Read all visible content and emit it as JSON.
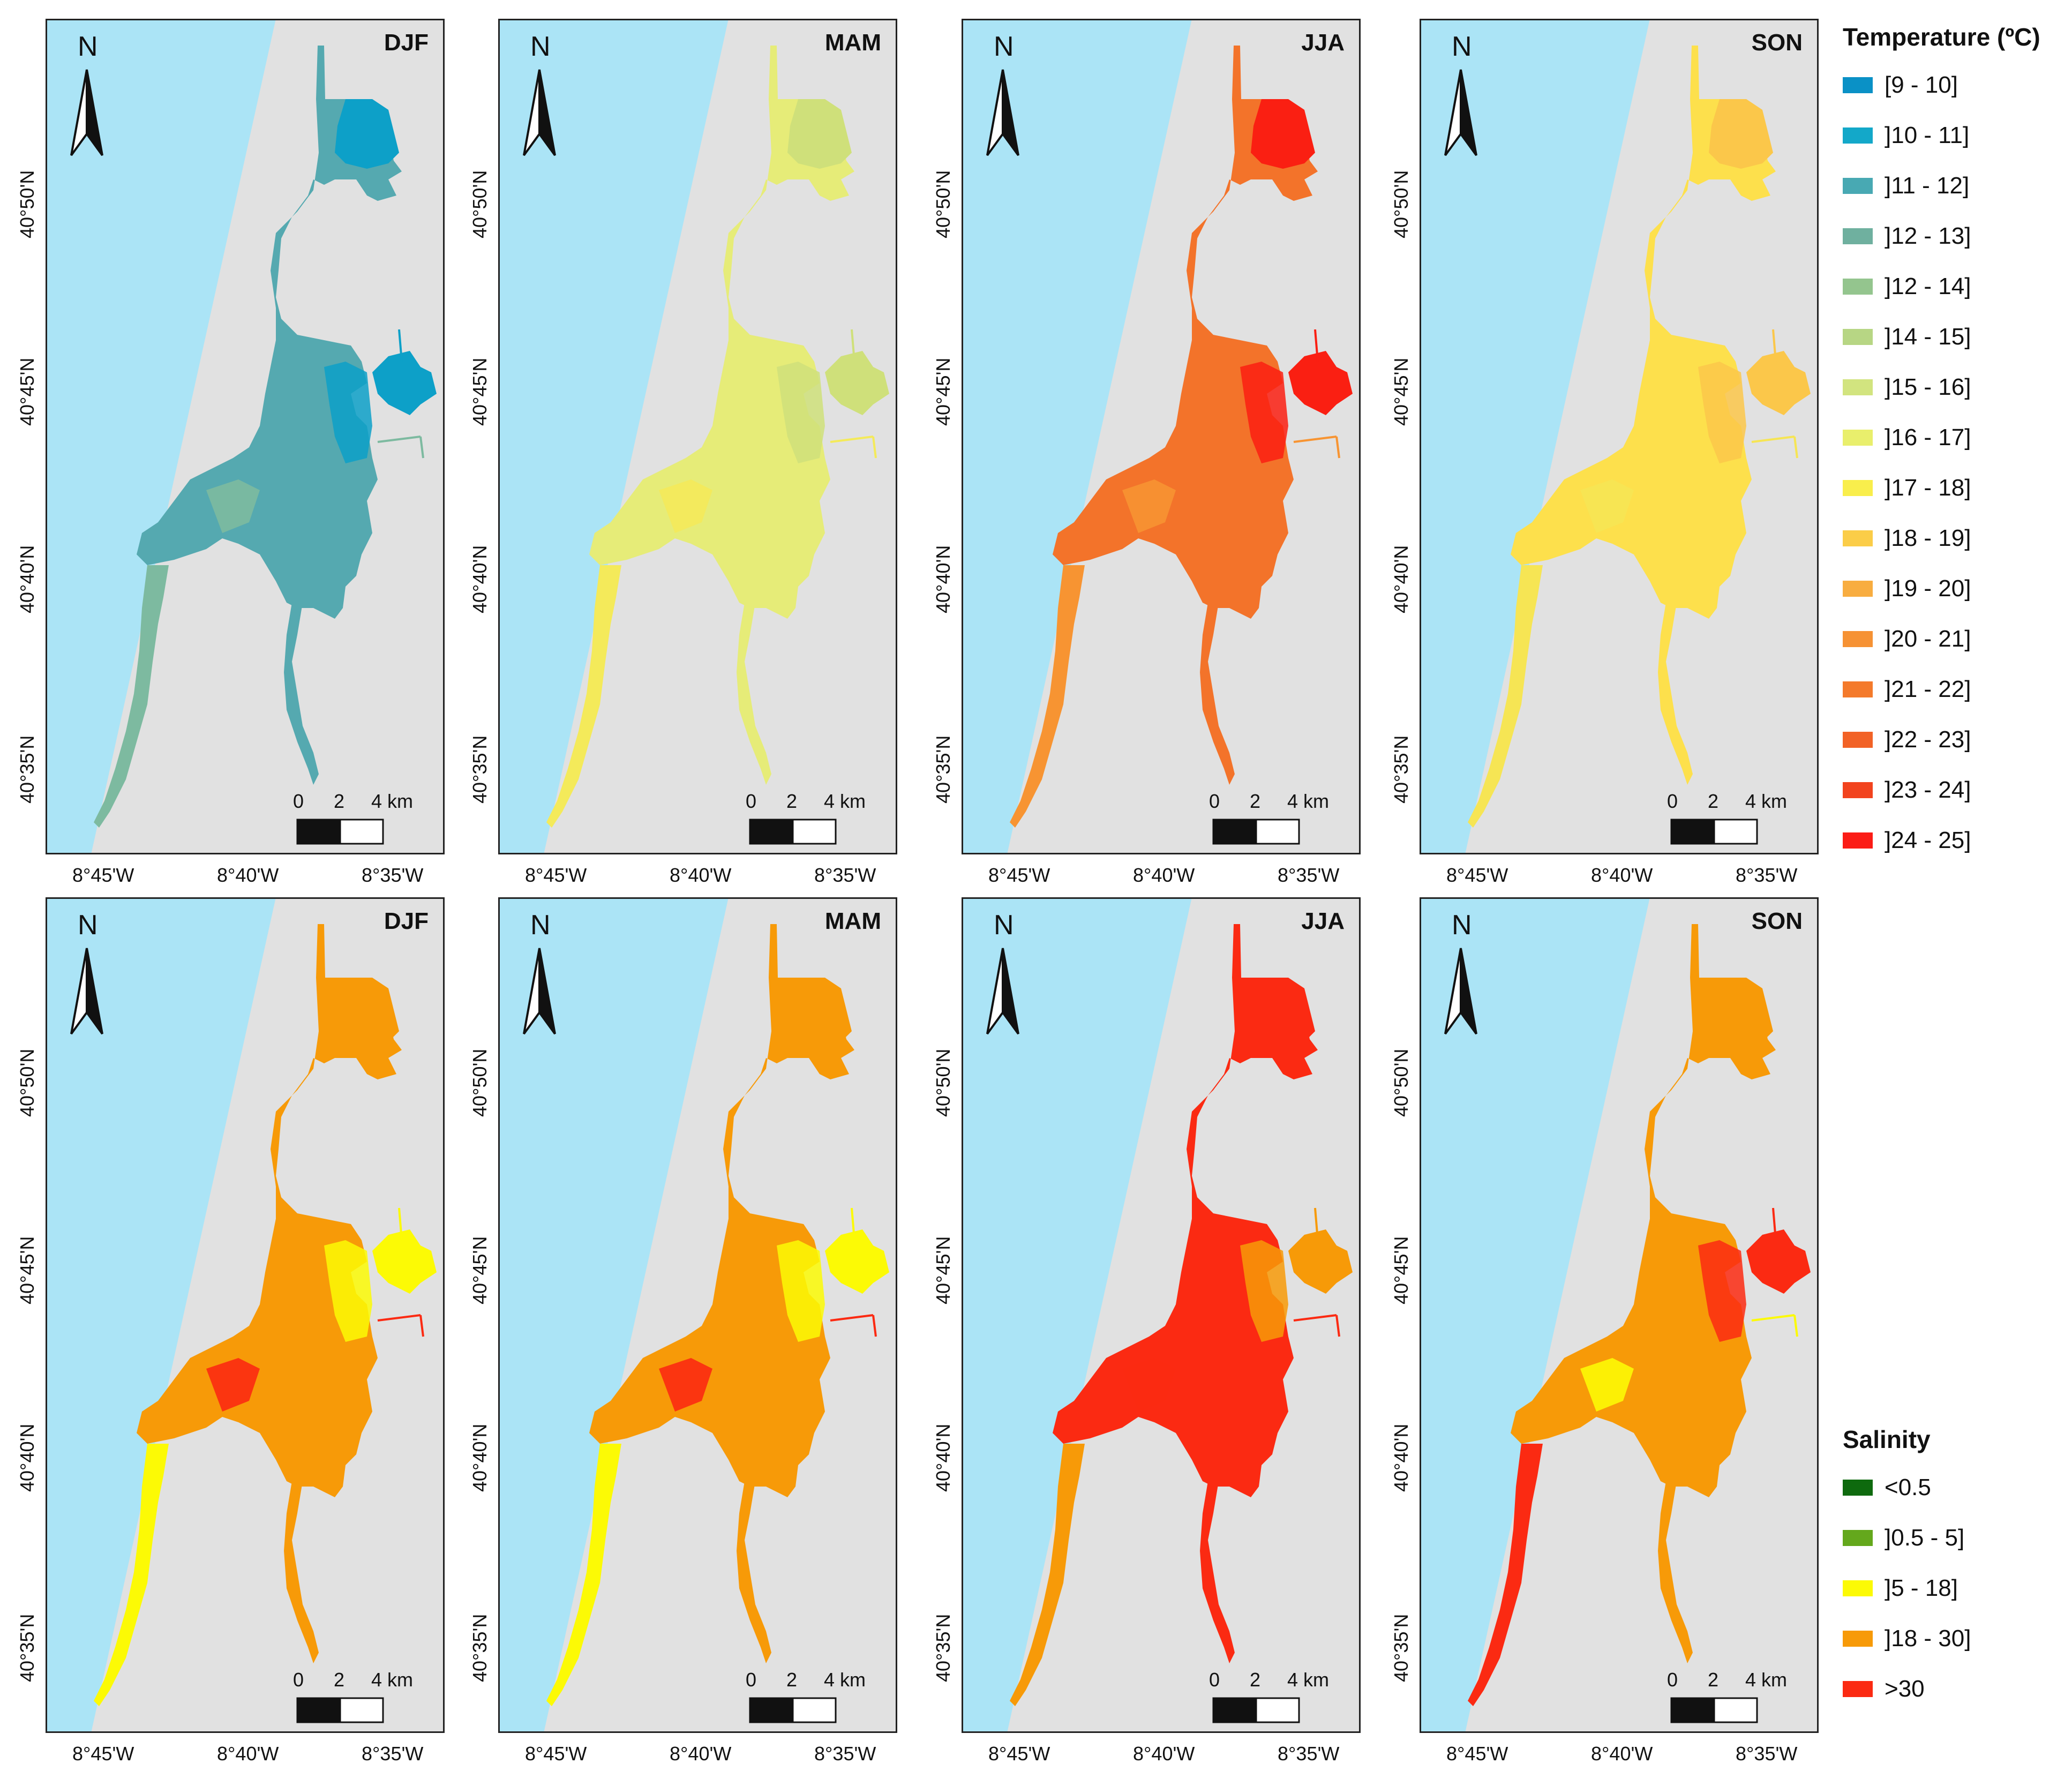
{
  "colors": {
    "sea": "#abe4f6",
    "land": "#e1e1e1",
    "frame": "#222222"
  },
  "panels": [
    {
      "season": "DJF",
      "row": 0,
      "col": 0,
      "fill": "#55a9b0",
      "accent": "#0da0c8",
      "accent2": "#7dbaa0"
    },
    {
      "season": "MAM",
      "row": 0,
      "col": 1,
      "fill": "#e6ec78",
      "accent": "#cfe07a",
      "accent2": "#f4ea5a"
    },
    {
      "season": "JJA",
      "row": 0,
      "col": 2,
      "fill": "#f3732a",
      "accent": "#fa1f12",
      "accent2": "#f79432"
    },
    {
      "season": "SON",
      "row": 0,
      "col": 3,
      "fill": "#fde04c",
      "accent": "#fbc74a",
      "accent2": "#f6e554"
    },
    {
      "season": "DJF",
      "row": 1,
      "col": 0,
      "fill": "#f79a08",
      "accent": "#fcfa05",
      "accent2": "#fb2a12"
    },
    {
      "season": "MAM",
      "row": 1,
      "col": 1,
      "fill": "#f79a08",
      "accent": "#fcfa05",
      "accent2": "#fb2a12"
    },
    {
      "season": "JJA",
      "row": 1,
      "col": 2,
      "fill": "#fb2a12",
      "accent": "#f79a08",
      "accent2": "#fb2a12"
    },
    {
      "season": "SON",
      "row": 1,
      "col": 3,
      "fill": "#f79a08",
      "accent": "#fb2a12",
      "accent2": "#fcfa05"
    }
  ],
  "axes": {
    "lat_labels": [
      "40°50'N",
      "40°45'N",
      "40°40'N",
      "40°35'N"
    ],
    "lon_labels": [
      "8°45'W",
      "8°40'W",
      "8°35'W"
    ]
  },
  "north_letter": "N",
  "scale_bar": {
    "labels": [
      "0",
      "2",
      "4 km"
    ]
  },
  "legends": {
    "temperature": {
      "title": "Temperature (ºC)",
      "items": [
        {
          "label": "[9 - 10]",
          "color": "#0a91c6"
        },
        {
          "label": "]10 - 11]",
          "color": "#13a8c9"
        },
        {
          "label": "]11 - 12]",
          "color": "#48a9b3"
        },
        {
          "label": "]12 - 13]",
          "color": "#6fb09f"
        },
        {
          "label": "]12 - 14]",
          "color": "#94c58e"
        },
        {
          "label": "]14 - 15]",
          "color": "#b7d684"
        },
        {
          "label": "]15 - 16]",
          "color": "#d2e47f"
        },
        {
          "label": "]16 - 17]",
          "color": "#e9ef6c"
        },
        {
          "label": "]17 - 18]",
          "color": "#f9ee4c"
        },
        {
          "label": "]18 - 19]",
          "color": "#fbcd48"
        },
        {
          "label": "]19 - 20]",
          "color": "#f8ad40"
        },
        {
          "label": "]20 - 21]",
          "color": "#f69234"
        },
        {
          "label": "]21 - 22]",
          "color": "#f47a2b"
        },
        {
          "label": "]22 - 23]",
          "color": "#f26226"
        },
        {
          "label": "]23 - 24]",
          "color": "#f2431e"
        },
        {
          "label": "]24 - 25]",
          "color": "#fb1c16"
        }
      ]
    },
    "salinity": {
      "title": "Salinity",
      "items": [
        {
          "label": "<0.5",
          "color": "#0e6a0e"
        },
        {
          "label": "]0.5 - 5]",
          "color": "#64a81c"
        },
        {
          "label": "]5 - 18]",
          "color": "#fcfa05"
        },
        {
          "label": "]18 - 30]",
          "color": "#f79a08"
        },
        {
          "label": ">30",
          "color": "#fb2a12"
        }
      ]
    }
  }
}
